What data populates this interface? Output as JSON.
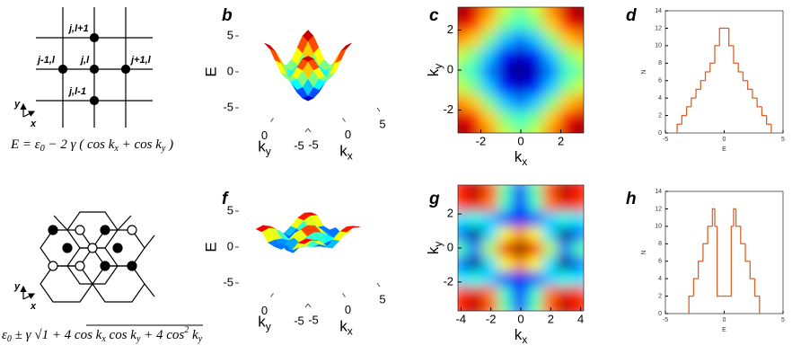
{
  "diagram_a": {
    "nodes": [
      "j,l+1",
      "j-1,l",
      "j,l",
      "j+1,l",
      "j,l-1"
    ],
    "axes": [
      "y",
      "x"
    ],
    "formula": [
      "E = ε",
      "0",
      " − 2 γ ( cos k",
      "x",
      " + cos k",
      "y",
      " )"
    ]
  },
  "diagram_e": {
    "axes": [
      "y",
      "x"
    ],
    "formula": [
      "ε",
      "0",
      " ± γ √",
      "1 + 4 cos k",
      "x",
      " cos k",
      "y",
      " + 4 cos",
      "2",
      " k",
      "y"
    ]
  },
  "chart_data": [
    {
      "type": "surface3d",
      "panel_label": "b",
      "xlabel": {
        "text": "k",
        "sub": "x"
      },
      "ylabel": {
        "text": "k",
        "sub": "y"
      },
      "zlabel": "E",
      "xlim": [
        -5,
        5
      ],
      "ylim": [
        -5,
        5
      ],
      "zlim": [
        -5,
        5
      ],
      "xticks": [
        -5,
        0,
        5
      ],
      "yticks": [
        -5,
        0
      ],
      "zticks": [
        -5,
        0,
        5
      ],
      "x": [
        -3.14,
        -2.36,
        -1.57,
        -0.79,
        0,
        0.79,
        1.57,
        2.36,
        3.14
      ],
      "y": [
        -3.14,
        -2.36,
        -1.57,
        -0.79,
        0,
        0.79,
        1.57,
        2.36,
        3.14
      ],
      "z": [
        [
          4,
          3.41,
          2,
          0.59,
          0,
          0.59,
          2,
          3.41,
          4
        ],
        [
          3.41,
          2.83,
          1.41,
          0,
          -0.59,
          0,
          1.41,
          2.83,
          3.41
        ],
        [
          2,
          1.41,
          0,
          -1.41,
          -2,
          -1.41,
          0,
          1.41,
          2
        ],
        [
          0.59,
          0,
          -1.41,
          -2.83,
          -3.41,
          -2.83,
          -1.41,
          0,
          0.59
        ],
        [
          0,
          -0.59,
          -2,
          -3.41,
          -4,
          -3.41,
          -2,
          -0.59,
          0
        ],
        [
          0.59,
          0,
          -1.41,
          -2.83,
          -3.41,
          -2.83,
          -1.41,
          0,
          0.59
        ],
        [
          2,
          1.41,
          0,
          -1.41,
          -2,
          -1.41,
          0,
          1.41,
          2
        ],
        [
          3.41,
          2.83,
          1.41,
          0,
          -0.59,
          0,
          1.41,
          2.83,
          3.41
        ],
        [
          4,
          3.41,
          2,
          0.59,
          0,
          0.59,
          2,
          3.41,
          4
        ]
      ]
    },
    {
      "type": "heatmap",
      "panel_label": "c",
      "xlabel": {
        "text": "k",
        "sub": "x"
      },
      "ylabel": {
        "text": "k",
        "sub": "y"
      },
      "xlim": [
        -3.14,
        3.14
      ],
      "ylim": [
        -3.14,
        3.14
      ],
      "xticks": [
        -2,
        0,
        2
      ],
      "yticks": [
        -2,
        0,
        2
      ],
      "x": [
        -3.14,
        -2.36,
        -1.57,
        -0.79,
        0,
        0.79,
        1.57,
        2.36,
        3.14
      ],
      "y": [
        -3.14,
        -2.36,
        -1.57,
        -0.79,
        0,
        0.79,
        1.57,
        2.36,
        3.14
      ],
      "z": [
        [
          4,
          3.41,
          2,
          0.59,
          0,
          0.59,
          2,
          3.41,
          4
        ],
        [
          3.41,
          2.83,
          1.41,
          0,
          -0.59,
          0,
          1.41,
          2.83,
          3.41
        ],
        [
          2,
          1.41,
          0,
          -1.41,
          -2,
          -1.41,
          0,
          1.41,
          2
        ],
        [
          0.59,
          0,
          -1.41,
          -2.83,
          -3.41,
          -2.83,
          -1.41,
          0,
          0.59
        ],
        [
          0,
          -0.59,
          -2,
          -3.41,
          -4,
          -3.41,
          -2,
          -0.59,
          0
        ],
        [
          0.59,
          0,
          -1.41,
          -2.83,
          -3.41,
          -2.83,
          -1.41,
          0,
          0.59
        ],
        [
          2,
          1.41,
          0,
          -1.41,
          -2,
          -1.41,
          0,
          1.41,
          2
        ],
        [
          3.41,
          2.83,
          1.41,
          0,
          -0.59,
          0,
          1.41,
          2.83,
          3.41
        ],
        [
          4,
          3.41,
          2,
          0.59,
          0,
          0.59,
          2,
          3.41,
          4
        ]
      ]
    },
    {
      "type": "histogram",
      "panel_label": "d",
      "xlabel": "E",
      "ylabel": "N",
      "color": "#d9622b",
      "xlim": [
        -5,
        5
      ],
      "ylim": [
        0,
        14
      ],
      "xticks": [
        -5,
        0,
        5
      ],
      "yticks": [
        0,
        2,
        4,
        6,
        8,
        10,
        12,
        14
      ],
      "bins": [
        -4,
        -3.6,
        -3.2,
        -2.8,
        -2.4,
        -2,
        -1.6,
        -1.2,
        -0.8,
        -0.4,
        0,
        0.4,
        0.8,
        1.2,
        1.6,
        2,
        2.4,
        2.8,
        3.2,
        3.6,
        4
      ],
      "values": [
        1,
        2,
        3,
        4,
        5,
        6,
        7,
        8,
        10,
        12,
        12,
        10,
        8,
        7,
        6,
        5,
        4,
        3,
        2,
        1
      ]
    },
    {
      "type": "surface3d",
      "panel_label": "f",
      "xlabel": {
        "text": "k",
        "sub": "x"
      },
      "ylabel": {
        "text": "k",
        "sub": "y"
      },
      "zlabel": "E",
      "xlim": [
        -5,
        5
      ],
      "ylim": [
        -5,
        5
      ],
      "zlim": [
        -5,
        5
      ],
      "xticks": [
        -5,
        0,
        5
      ],
      "yticks": [
        -5,
        0
      ],
      "zticks": [
        -5,
        0,
        5
      ],
      "x": [
        -4,
        -3,
        -2,
        -1,
        0,
        1,
        2,
        3,
        4
      ],
      "y": [
        -3.5,
        -2.625,
        -1.75,
        -0.875,
        0,
        0.875,
        1.75,
        2.625,
        3.5
      ],
      "z": [
        [
          2.64,
          2.87,
          2.47,
          1.58,
          0.88,
          1.58,
          2.47,
          2.87,
          2.64
        ],
        [
          2.51,
          2.73,
          2.34,
          1.47,
          0.74,
          1.47,
          2.34,
          2.73,
          2.51
        ],
        [
          1.26,
          1.36,
          1.2,
          0.86,
          0.64,
          0.86,
          1.2,
          1.36,
          1.26
        ],
        [
          0.99,
          0.33,
          1.25,
          2,
          2.28,
          2,
          1.25,
          0.33,
          0.99
        ],
        [
          1.55,
          1.02,
          1.82,
          2.68,
          3,
          2.68,
          1.82,
          1.02,
          1.55
        ],
        [
          0.99,
          0.33,
          1.25,
          2,
          2.28,
          2,
          1.25,
          0.33,
          0.99
        ],
        [
          1.26,
          1.36,
          1.2,
          0.86,
          0.64,
          0.86,
          1.2,
          1.36,
          1.26
        ],
        [
          2.51,
          2.73,
          2.34,
          1.47,
          0.74,
          1.47,
          2.34,
          2.73,
          2.51
        ],
        [
          2.64,
          2.87,
          2.47,
          1.58,
          0.88,
          1.58,
          2.47,
          2.87,
          2.64
        ]
      ]
    },
    {
      "type": "heatmap",
      "panel_label": "g",
      "xlabel": {
        "text": "k",
        "sub": "x"
      },
      "ylabel": {
        "text": "k",
        "sub": "y"
      },
      "xlim": [
        -4.2,
        4.2
      ],
      "ylim": [
        -3.7,
        3.7
      ],
      "xticks": [
        -4,
        -2,
        0,
        2,
        4
      ],
      "yticks": [
        -2,
        0,
        2
      ],
      "x": [
        -4,
        -3,
        -2,
        -1,
        0,
        1,
        2,
        3,
        4
      ],
      "y": [
        -3.5,
        -2.625,
        -1.75,
        -0.875,
        0,
        0.875,
        1.75,
        2.625,
        3.5
      ],
      "z": [
        [
          2.64,
          2.87,
          2.47,
          1.58,
          0.88,
          1.58,
          2.47,
          2.87,
          2.64
        ],
        [
          2.51,
          2.73,
          2.34,
          1.47,
          0.74,
          1.47,
          2.34,
          2.73,
          2.51
        ],
        [
          1.26,
          1.36,
          1.2,
          0.86,
          0.64,
          0.86,
          1.2,
          1.36,
          1.26
        ],
        [
          0.99,
          0.33,
          1.25,
          2,
          2.28,
          2,
          1.25,
          0.33,
          0.99
        ],
        [
          1.55,
          1.02,
          1.82,
          2.68,
          3,
          2.68,
          1.82,
          1.02,
          1.55
        ],
        [
          0.99,
          0.33,
          1.25,
          2,
          2.28,
          2,
          1.25,
          0.33,
          0.99
        ],
        [
          1.26,
          1.36,
          1.2,
          0.86,
          0.64,
          0.86,
          1.2,
          1.36,
          1.26
        ],
        [
          2.51,
          2.73,
          2.34,
          1.47,
          0.74,
          1.47,
          2.34,
          2.73,
          2.51
        ],
        [
          2.64,
          2.87,
          2.47,
          1.58,
          0.88,
          1.58,
          2.47,
          2.87,
          2.64
        ]
      ]
    },
    {
      "type": "histogram",
      "panel_label": "h",
      "xlabel": "E",
      "ylabel": "N",
      "color": "#d9622b",
      "xlim": [
        -5,
        5
      ],
      "ylim": [
        0,
        14
      ],
      "xticks": [
        -5,
        0,
        5
      ],
      "yticks": [
        0,
        2,
        4,
        6,
        8,
        10,
        12,
        14
      ],
      "bins": [
        -3,
        -2.8,
        -2.6,
        -2.4,
        -2.2,
        -2,
        -1.8,
        -1.6,
        -1.4,
        -1.2,
        -1,
        -0.8,
        -0.6,
        -0.4,
        -0.2,
        0,
        0.2,
        0.4,
        0.6,
        0.8,
        1,
        1.2,
        1.4,
        1.6,
        1.8,
        2,
        2.2,
        2.4,
        2.6,
        2.8,
        3
      ],
      "values": [
        2,
        2,
        4,
        4,
        6,
        6,
        8,
        8,
        10,
        10,
        12,
        10,
        2,
        2,
        2,
        2,
        2,
        2,
        10,
        12,
        10,
        10,
        8,
        8,
        6,
        6,
        4,
        4,
        2,
        2
      ]
    }
  ]
}
